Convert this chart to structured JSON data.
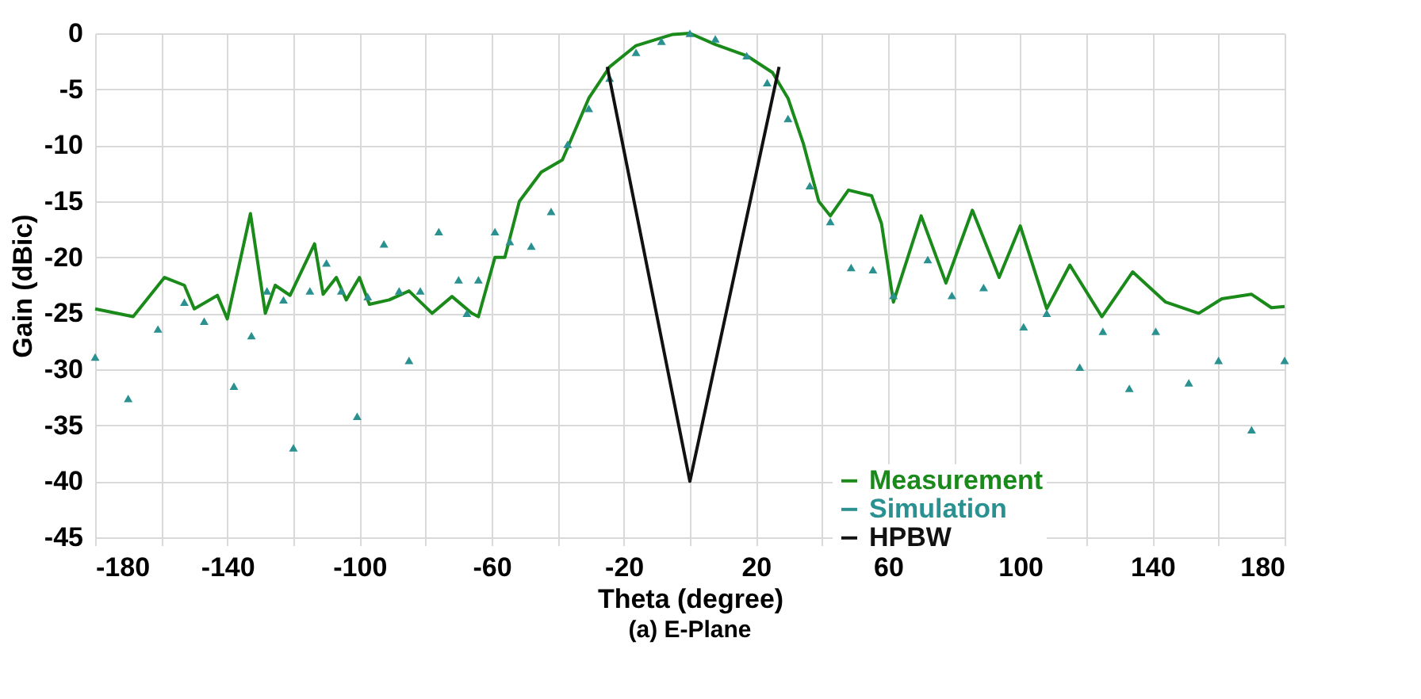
{
  "chart_data": {
    "type": "line",
    "xlabel": "Theta (degree)",
    "ylabel": "Gain (dBic)",
    "annotations": [
      "(a) E-Plane"
    ],
    "xlim": [
      -180,
      180
    ],
    "ylim": [
      -45,
      0
    ],
    "xticks": [
      -180,
      {
        "value": -160,
        "label": null
      },
      -140,
      {
        "value": -120,
        "label": null
      },
      -100,
      {
        "value": -80,
        "label": null
      },
      -60,
      {
        "value": -40,
        "label": null
      },
      -20,
      {
        "value": 0,
        "label": null
      },
      20,
      {
        "value": 40,
        "label": null
      },
      60,
      {
        "value": 80,
        "label": null
      },
      100,
      {
        "value": 120,
        "label": null
      },
      140,
      {
        "value": 160,
        "label": null
      },
      180
    ],
    "yticks": [
      0,
      -5,
      -10,
      -15,
      -20,
      -25,
      -30,
      -35,
      -40,
      -45
    ],
    "grid": true,
    "legend": "bottom right",
    "series": [
      {
        "name": "Measurement",
        "color": "#1a8a1a",
        "marker": "none",
        "x": [
          -180,
          -168.5,
          -159,
          -153,
          -150,
          -143,
          -140,
          -133,
          -128.5,
          -125.5,
          -121,
          -113.6,
          -111,
          -107,
          -104,
          -100,
          -97,
          -91,
          -85,
          -78,
          -72,
          -66,
          -64,
          -59,
          -56,
          -51.6,
          -45,
          -38.6,
          -30.6,
          -24.3,
          -16.3,
          -5.2,
          0,
          7.7,
          17.2,
          25,
          29.7,
          34.4,
          39,
          42.5,
          48,
          55,
          58,
          61.6,
          70,
          77.5,
          85.5,
          93.6,
          100,
          108,
          115,
          124.7,
          134,
          144,
          154,
          161,
          170,
          176,
          180
        ],
        "values": [
          -24.6,
          -25.3,
          -21.8,
          -22.5,
          -24.6,
          -23.4,
          -25.5,
          -16.1,
          -25,
          -22.5,
          -23.4,
          -18.8,
          -23.3,
          -21.8,
          -23.8,
          -21.8,
          -24.2,
          -23.8,
          -23,
          -25,
          -23.5,
          -25,
          -25.3,
          -20,
          -20,
          -15,
          -12.4,
          -11.3,
          -5.8,
          -3,
          -1.1,
          -0.1,
          0,
          -1,
          -2,
          -3.5,
          -5.8,
          -9.9,
          -15,
          -16.3,
          -14,
          -14.5,
          -17,
          -24,
          -16.3,
          -22.3,
          -15.8,
          -21.8,
          -17.2,
          -24.6,
          -20.7,
          -25.3,
          -21.3,
          -24,
          -25,
          -23.7,
          -23.3,
          -24.5,
          -24.4
        ]
      },
      {
        "name": "Simulation",
        "color": "#2a9090",
        "type": "scatter",
        "marker": "triangle",
        "x": [
          -180,
          -170,
          -161,
          -153,
          -147,
          -138,
          -132.7,
          -128,
          -123,
          -120,
          -115,
          -110,
          -105.5,
          -100.7,
          -97.5,
          -92.6,
          -88,
          -85,
          -81.6,
          -76,
          -70,
          -67.5,
          -64,
          -59,
          -54.5,
          -48,
          -42,
          -37,
          -30.6,
          -24.3,
          -16.3,
          -8.6,
          0,
          7.7,
          17.2,
          23.4,
          29.7,
          36.3,
          42.5,
          48.8,
          55.4,
          61.6,
          72,
          79.3,
          88.9,
          101,
          108,
          118,
          125,
          133,
          141,
          151,
          160,
          170,
          180
        ],
        "values": [
          -28.9,
          -32.6,
          -26.4,
          -24,
          -25.7,
          -31.5,
          -27,
          -23,
          -23.8,
          -37,
          -23,
          -20.5,
          -23,
          -34.2,
          -23.5,
          -18.8,
          -23,
          -29.2,
          -23,
          -17.7,
          -22,
          -25,
          -22,
          -17.7,
          -18.6,
          -19,
          -15.9,
          -9.9,
          -6.7,
          -4,
          -1.7,
          -0.7,
          0,
          -0.5,
          -2,
          -4.4,
          -7.6,
          -13.6,
          -16.8,
          -20.9,
          -21.1,
          -23.4,
          -20.2,
          -23.4,
          -22.7,
          -26.2,
          -25,
          -29.8,
          -26.6,
          -31.7,
          -26.6,
          -31.2,
          -29.2,
          -35.4,
          -29.2
        ]
      },
      {
        "name": "HPBW",
        "color": "#111111",
        "marker": "none",
        "x": [
          -25,
          0,
          27
        ],
        "values": [
          -3,
          -40,
          -3
        ]
      }
    ]
  }
}
